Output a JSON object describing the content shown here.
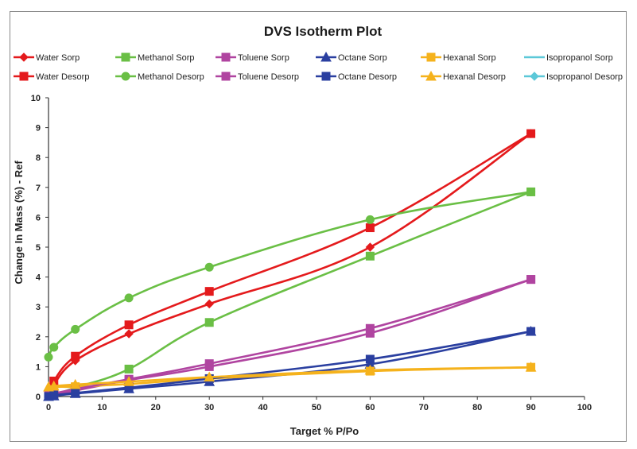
{
  "chart_data": {
    "type": "line",
    "title": "DVS Isotherm Plot",
    "xlabel": "Target % P/Po",
    "ylabel": "Change In Mass (%) - Ref",
    "xlim": [
      0,
      100
    ],
    "ylim": [
      0,
      10
    ],
    "xticks": [
      0,
      10,
      20,
      30,
      40,
      50,
      60,
      70,
      80,
      90,
      100
    ],
    "yticks": [
      0,
      1,
      2,
      3,
      4,
      5,
      6,
      7,
      8,
      9,
      10
    ],
    "grid": false,
    "legend_position": "top",
    "series": [
      {
        "name": "Water Sorp",
        "color": "#e41a1c",
        "marker": "diamond",
        "x": [
          0,
          1,
          5,
          15,
          30,
          60,
          90
        ],
        "y": [
          0,
          0.4,
          1.2,
          2.1,
          3.1,
          5.0,
          8.8
        ]
      },
      {
        "name": "Methanol Sorp",
        "color": "#6abf45",
        "marker": "square",
        "x": [
          0,
          1,
          5,
          15,
          30,
          60,
          90
        ],
        "y": [
          0,
          0.05,
          0.3,
          0.92,
          2.48,
          4.7,
          6.85
        ]
      },
      {
        "name": "Toluene Sorp",
        "color": "#b044a0",
        "marker": "square",
        "x": [
          0,
          1,
          5,
          15,
          30,
          60,
          90
        ],
        "y": [
          0,
          0.05,
          0.2,
          0.55,
          1.0,
          2.12,
          3.92
        ]
      },
      {
        "name": "Octane Sorp",
        "color": "#2a3fa0",
        "marker": "triangle",
        "x": [
          0,
          1,
          5,
          15,
          30,
          60,
          90
        ],
        "y": [
          0,
          0.02,
          0.1,
          0.26,
          0.5,
          1.08,
          2.18
        ]
      },
      {
        "name": "Hexanal Sorp",
        "color": "#f5b21c",
        "marker": "square",
        "x": [
          0,
          1,
          5,
          15,
          30,
          60,
          90
        ],
        "y": [
          0,
          0.3,
          0.33,
          0.42,
          0.6,
          0.85,
          0.98
        ]
      },
      {
        "name": "Isopropanol Sorp",
        "color": "#5cc8d8",
        "marker": "line",
        "x": [],
        "y": []
      },
      {
        "name": "Water Desorp",
        "color": "#e41a1c",
        "marker": "square",
        "x": [
          0,
          1,
          5,
          15,
          30,
          60,
          90
        ],
        "y": [
          0,
          0.52,
          1.35,
          2.4,
          3.52,
          5.65,
          8.8
        ]
      },
      {
        "name": "Methanol Desorp",
        "color": "#6abf45",
        "marker": "circle",
        "x": [
          0,
          1,
          5,
          15,
          30,
          60,
          90
        ],
        "y": [
          1.32,
          1.65,
          2.25,
          3.3,
          4.33,
          5.92,
          6.85
        ]
      },
      {
        "name": "Toluene Desorp",
        "color": "#b044a0",
        "marker": "square",
        "x": [
          0,
          1,
          5,
          15,
          30,
          60,
          90
        ],
        "y": [
          0.05,
          0.1,
          0.25,
          0.58,
          1.1,
          2.28,
          3.92
        ]
      },
      {
        "name": "Octane Desorp",
        "color": "#2a3fa0",
        "marker": "square",
        "x": [
          0,
          1,
          5,
          15,
          30,
          60,
          90
        ],
        "y": [
          0,
          0.05,
          0.12,
          0.3,
          0.6,
          1.25,
          2.18
        ]
      },
      {
        "name": "Hexanal Desorp",
        "color": "#f5b21c",
        "marker": "triangle",
        "x": [
          0,
          1,
          5,
          15,
          30,
          60,
          90
        ],
        "y": [
          0.32,
          0.35,
          0.4,
          0.5,
          0.65,
          0.88,
          0.98
        ]
      },
      {
        "name": "Isopropanol Desorp",
        "color": "#5cc8d8",
        "marker": "diamond",
        "x": [],
        "y": []
      }
    ]
  }
}
